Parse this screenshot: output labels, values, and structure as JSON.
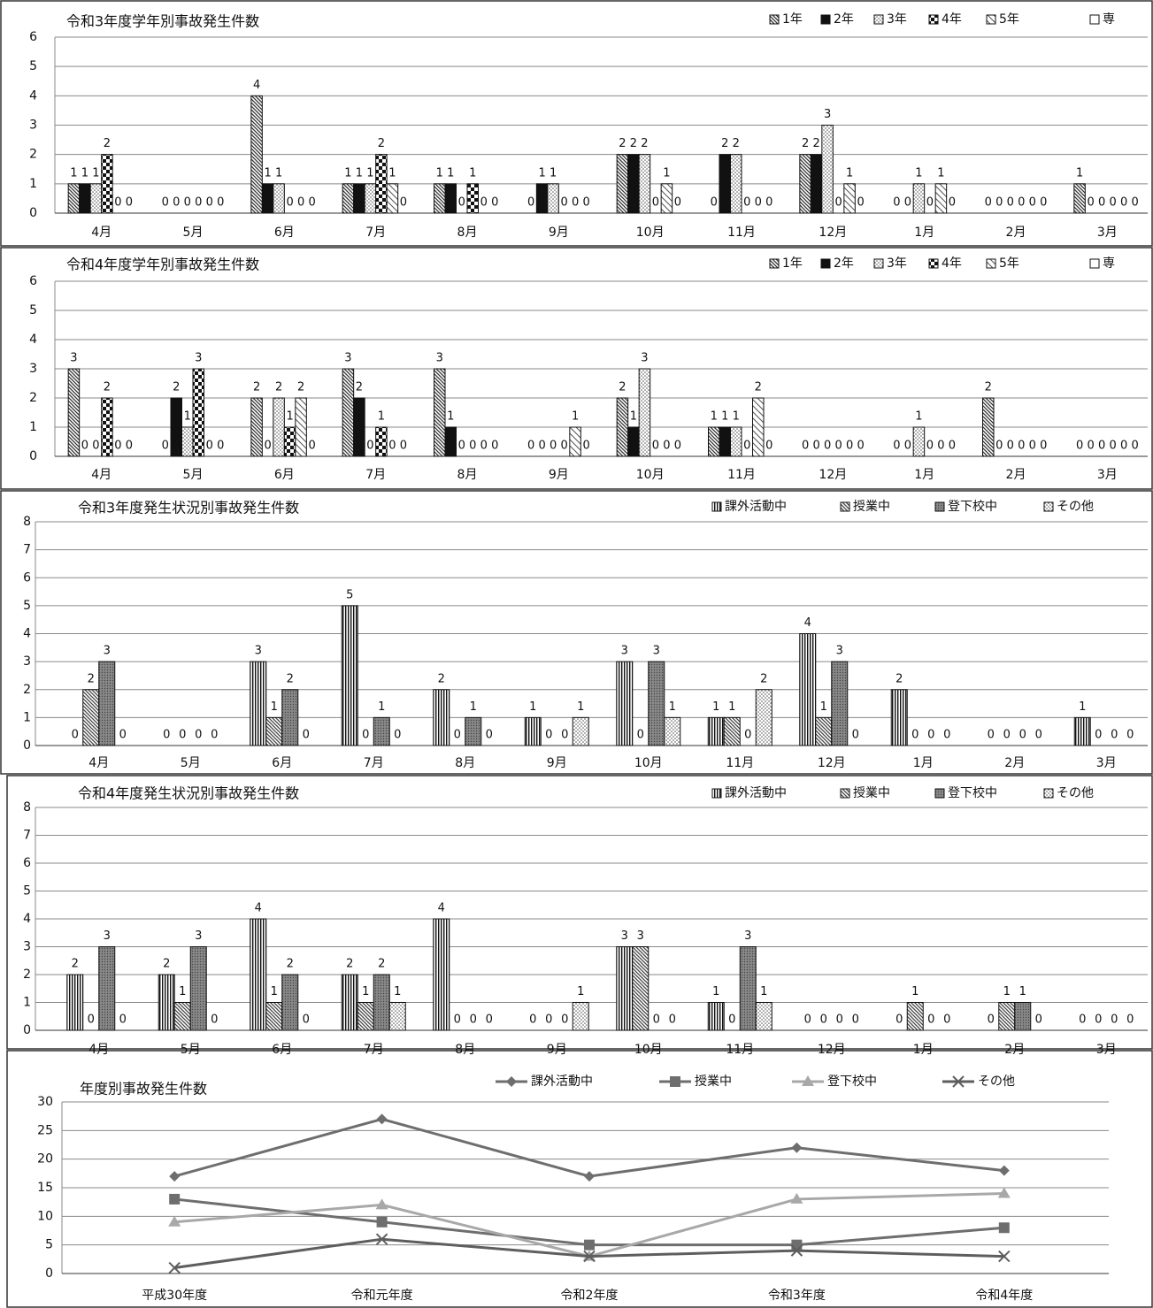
{
  "chart_data": [
    {
      "type": "bar",
      "title": "令和3年度学年別事故発生件数",
      "categories": [
        "4月",
        "5月",
        "6月",
        "7月",
        "8月",
        "9月",
        "10月",
        "11月",
        "12月",
        "1月",
        "2月",
        "3月"
      ],
      "series": [
        {
          "name": "1年",
          "color": "#333333",
          "pattern": "diagonal",
          "values": [
            1,
            0,
            4,
            1,
            1,
            0,
            2,
            0,
            2,
            0,
            0,
            1
          ]
        },
        {
          "name": "2年",
          "color": "#111111",
          "pattern": "solid",
          "values": [
            1,
            0,
            1,
            1,
            1,
            1,
            2,
            2,
            2,
            0,
            0,
            0
          ]
        },
        {
          "name": "3年",
          "color": "#555555",
          "pattern": "dots",
          "values": [
            1,
            0,
            1,
            1,
            0,
            1,
            2,
            2,
            3,
            1,
            0,
            0
          ]
        },
        {
          "name": "4年",
          "color": "#111111",
          "pattern": "checker",
          "values": [
            2,
            0,
            0,
            2,
            1,
            0,
            0,
            0,
            0,
            0,
            0,
            0
          ]
        },
        {
          "name": "5年",
          "color": "#555555",
          "pattern": "hatch",
          "values": [
            0,
            0,
            0,
            1,
            0,
            0,
            1,
            0,
            1,
            1,
            0,
            0
          ]
        },
        {
          "name": "専",
          "color": "#555555",
          "pattern": "none",
          "values": [
            0,
            0,
            0,
            0,
            0,
            0,
            0,
            0,
            0,
            0,
            0,
            0
          ]
        }
      ],
      "ylim": [
        0,
        6
      ],
      "yticks": [
        0,
        1,
        2,
        3,
        4,
        5,
        6
      ],
      "grid": true
    },
    {
      "type": "bar",
      "title": "令和4年度学年別事故発生件数",
      "categories": [
        "4月",
        "5月",
        "6月",
        "7月",
        "8月",
        "9月",
        "10月",
        "11月",
        "12月",
        "1月",
        "2月",
        "3月"
      ],
      "series": [
        {
          "name": "1年",
          "color": "#333333",
          "pattern": "diagonal",
          "values": [
            3,
            0,
            2,
            3,
            3,
            0,
            2,
            1,
            0,
            0,
            2,
            0
          ]
        },
        {
          "name": "2年",
          "color": "#111111",
          "pattern": "solid",
          "values": [
            0,
            2,
            0,
            2,
            1,
            0,
            1,
            1,
            0,
            0,
            0,
            0
          ]
        },
        {
          "name": "3年",
          "color": "#555555",
          "pattern": "dots",
          "values": [
            0,
            1,
            2,
            0,
            0,
            0,
            3,
            1,
            0,
            1,
            0,
            0
          ]
        },
        {
          "name": "4年",
          "color": "#111111",
          "pattern": "checker",
          "values": [
            2,
            3,
            1,
            1,
            0,
            0,
            0,
            0,
            0,
            0,
            0,
            0
          ]
        },
        {
          "name": "5年",
          "color": "#555555",
          "pattern": "hatch",
          "values": [
            0,
            0,
            2,
            0,
            0,
            1,
            0,
            2,
            0,
            0,
            0,
            0
          ]
        },
        {
          "name": "専",
          "color": "#555555",
          "pattern": "none",
          "values": [
            0,
            0,
            0,
            0,
            0,
            0,
            0,
            0,
            0,
            0,
            0,
            0
          ]
        }
      ],
      "ylim": [
        0,
        6
      ],
      "yticks": [
        0,
        1,
        2,
        3,
        4,
        5,
        6
      ],
      "grid": true
    },
    {
      "type": "bar",
      "title": "令和3年度発生状況別事故発生件数",
      "categories": [
        "4月",
        "5月",
        "6月",
        "7月",
        "8月",
        "9月",
        "10月",
        "11月",
        "12月",
        "1月",
        "2月",
        "3月"
      ],
      "series": [
        {
          "name": "課外活動中",
          "color": "#111111",
          "pattern": "vstripe",
          "values": [
            0,
            0,
            3,
            5,
            2,
            1,
            3,
            1,
            4,
            2,
            0,
            1
          ]
        },
        {
          "name": "授業中",
          "color": "#444444",
          "pattern": "diagonal",
          "values": [
            2,
            0,
            1,
            0,
            0,
            0,
            0,
            1,
            1,
            0,
            0,
            0
          ]
        },
        {
          "name": "登下校中",
          "color": "#444444",
          "pattern": "dense",
          "values": [
            3,
            0,
            2,
            1,
            1,
            0,
            3,
            0,
            3,
            0,
            0,
            0
          ]
        },
        {
          "name": "その他",
          "color": "#555555",
          "pattern": "dots",
          "values": [
            0,
            0,
            0,
            0,
            0,
            1,
            1,
            2,
            0,
            0,
            0,
            0
          ]
        }
      ],
      "ylim": [
        0,
        8
      ],
      "yticks": [
        0,
        1,
        2,
        3,
        4,
        5,
        6,
        7,
        8
      ],
      "grid": true
    },
    {
      "type": "bar",
      "title": "令和4年度発生状況別事故発生件数",
      "categories": [
        "4月",
        "5月",
        "6月",
        "7月",
        "8月",
        "9月",
        "10月",
        "11月",
        "12月",
        "1月",
        "2月",
        "3月"
      ],
      "series": [
        {
          "name": "課外活動中",
          "color": "#111111",
          "pattern": "vstripe",
          "values": [
            2,
            2,
            4,
            2,
            4,
            0,
            3,
            1,
            0,
            0,
            0,
            0
          ]
        },
        {
          "name": "授業中",
          "color": "#444444",
          "pattern": "diagonal",
          "values": [
            0,
            1,
            1,
            1,
            0,
            0,
            3,
            0,
            0,
            1,
            1,
            0
          ]
        },
        {
          "name": "登下校中",
          "color": "#444444",
          "pattern": "dense",
          "values": [
            3,
            3,
            2,
            2,
            0,
            0,
            0,
            3,
            0,
            0,
            1,
            0
          ]
        },
        {
          "name": "その他",
          "color": "#555555",
          "pattern": "dots",
          "values": [
            0,
            0,
            0,
            1,
            0,
            1,
            0,
            1,
            0,
            0,
            0,
            0
          ]
        }
      ],
      "ylim": [
        0,
        8
      ],
      "yticks": [
        0,
        1,
        2,
        3,
        4,
        5,
        6,
        7,
        8
      ],
      "grid": true
    },
    {
      "type": "line",
      "title": "年度別事故発生件数",
      "categories": [
        "平成30年度",
        "令和元年度",
        "令和2年度",
        "令和3年度",
        "令和4年度"
      ],
      "series": [
        {
          "name": "課外活動中",
          "color": "#6e6e6e",
          "marker": "diamond",
          "values": [
            17,
            27,
            17,
            22,
            18
          ]
        },
        {
          "name": "授業中",
          "color": "#6e6e6e",
          "marker": "square",
          "values": [
            13,
            9,
            5,
            5,
            8
          ]
        },
        {
          "name": "登下校中",
          "color": "#a8a8a8",
          "marker": "triangle",
          "values": [
            9,
            12,
            3,
            13,
            14
          ]
        },
        {
          "name": "その他",
          "color": "#5e5e5e",
          "marker": "x",
          "values": [
            1,
            6,
            3,
            4,
            3
          ]
        }
      ],
      "ylim": [
        0,
        30
      ],
      "yticks": [
        0,
        5,
        10,
        15,
        20,
        25,
        30
      ],
      "grid": true
    }
  ]
}
